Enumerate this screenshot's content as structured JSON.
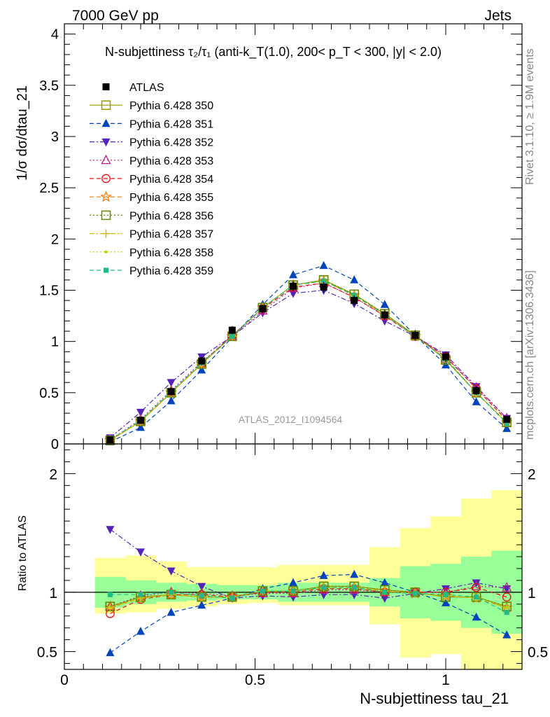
{
  "header": {
    "left": "7000 GeV pp",
    "right": "Jets"
  },
  "side_text": {
    "rivet": "Rivet 3.1.10, ≥ 1.9M events",
    "mcplots": "mcplots.cern.ch [arXiv:1306.3436]"
  },
  "chart_data": [
    {
      "type": "line",
      "panel": "main",
      "title": "N-subjettiness τ₂/τ₁ (anti-k_T(1.0), 200< p_T < 300, |y| < 2.0)",
      "ylabel": "1/σ dσ/dtau_21",
      "xlim": [
        0,
        1.2
      ],
      "ylim": [
        0,
        4.1
      ],
      "y_ticks": [
        "0",
        "0.5",
        "1",
        "1.5",
        "2",
        "2.5",
        "3",
        "3.5",
        "4"
      ],
      "watermark": "ATLAS_2012_I1094564",
      "legend_position": "top-left",
      "x": [
        0.12,
        0.2,
        0.28,
        0.36,
        0.44,
        0.52,
        0.6,
        0.68,
        0.76,
        0.84,
        0.92,
        1.0,
        1.08,
        1.16
      ],
      "atlas": {
        "name": "ATLAS",
        "values": [
          0.04,
          0.23,
          0.51,
          0.81,
          1.11,
          1.32,
          1.54,
          1.53,
          1.4,
          1.26,
          1.06,
          0.85,
          0.52,
          0.24
        ],
        "errors": [
          0.01,
          0.03,
          0.04,
          0.04,
          0.04,
          0.04,
          0.05,
          0.05,
          0.05,
          0.05,
          0.05,
          0.05,
          0.04,
          0.03
        ]
      },
      "series": [
        {
          "name": "Pythia 6.428 350",
          "color": "#999900",
          "marker": "square-open",
          "dash": "solid",
          "values": [
            0.035,
            0.22,
            0.5,
            0.78,
            1.05,
            1.33,
            1.55,
            1.6,
            1.46,
            1.27,
            1.06,
            0.82,
            0.5,
            0.21
          ]
        },
        {
          "name": "Pythia 6.428 351",
          "color": "#0044bb",
          "marker": "triangle-up",
          "dash": "dashed",
          "values": [
            0.02,
            0.16,
            0.42,
            0.72,
            1.04,
            1.36,
            1.65,
            1.74,
            1.6,
            1.36,
            1.06,
            0.77,
            0.41,
            0.15
          ]
        },
        {
          "name": "Pythia 6.428 352",
          "color": "#5522bb",
          "marker": "triangle-down",
          "dash": "dashdot",
          "values": [
            0.06,
            0.31,
            0.6,
            0.85,
            1.05,
            1.28,
            1.47,
            1.5,
            1.37,
            1.2,
            1.05,
            0.87,
            0.56,
            0.25
          ]
        },
        {
          "name": "Pythia 6.428 353",
          "color": "#bb2288",
          "marker": "triangle-open",
          "dash": "dotted",
          "values": [
            0.04,
            0.24,
            0.52,
            0.8,
            1.05,
            1.3,
            1.52,
            1.57,
            1.43,
            1.25,
            1.06,
            0.85,
            0.55,
            0.25
          ]
        },
        {
          "name": "Pythia 6.428 354",
          "color": "#dd1111",
          "marker": "circle-open",
          "dash": "dashed",
          "values": [
            0.035,
            0.22,
            0.5,
            0.79,
            1.06,
            1.32,
            1.53,
            1.57,
            1.43,
            1.25,
            1.05,
            0.85,
            0.54,
            0.23
          ]
        },
        {
          "name": "Pythia 6.428 355",
          "color": "#ee7700",
          "marker": "star-open",
          "dash": "dashed",
          "values": [
            0.035,
            0.22,
            0.5,
            0.78,
            1.05,
            1.33,
            1.55,
            1.59,
            1.45,
            1.26,
            1.05,
            0.83,
            0.5,
            0.21
          ]
        },
        {
          "name": "Pythia 6.428 356",
          "color": "#668800",
          "marker": "square-open",
          "dash": "dotted",
          "values": [
            0.035,
            0.22,
            0.5,
            0.78,
            1.05,
            1.33,
            1.55,
            1.6,
            1.46,
            1.27,
            1.06,
            0.82,
            0.5,
            0.21
          ]
        },
        {
          "name": "Pythia 6.428 357",
          "color": "#ccbb00",
          "marker": "plus",
          "dash": "dashdot",
          "values": [
            0.035,
            0.22,
            0.5,
            0.78,
            1.05,
            1.33,
            1.55,
            1.59,
            1.45,
            1.26,
            1.05,
            0.83,
            0.5,
            0.21
          ]
        },
        {
          "name": "Pythia 6.428 358",
          "color": "#bbcc00",
          "marker": "dot",
          "dash": "dotted",
          "values": [
            0.035,
            0.22,
            0.5,
            0.78,
            1.05,
            1.33,
            1.55,
            1.59,
            1.45,
            1.26,
            1.05,
            0.83,
            0.5,
            0.21
          ]
        },
        {
          "name": "Pythia 6.428 359",
          "color": "#22bb88",
          "marker": "square-filled-small",
          "dash": "dashed",
          "values": [
            0.04,
            0.23,
            0.51,
            0.79,
            1.05,
            1.33,
            1.55,
            1.59,
            1.45,
            1.26,
            1.05,
            0.83,
            0.5,
            0.2
          ]
        }
      ]
    },
    {
      "type": "line",
      "panel": "ratio",
      "ylabel": "Ratio to ATLAS",
      "xlabel": "N-subjettiness tau_21",
      "xlim": [
        0,
        1.2
      ],
      "ylim": [
        0.35,
        2.25
      ],
      "y_ticks": [
        "0.5",
        "1",
        "2"
      ],
      "x_ticks": [
        "0",
        "0.5",
        "1"
      ],
      "bin_edges": [
        0.08,
        0.16,
        0.24,
        0.32,
        0.4,
        0.48,
        0.56,
        0.64,
        0.72,
        0.8,
        0.88,
        0.96,
        1.04,
        1.12,
        1.2
      ],
      "band_inner": [
        [
          0.87,
          1.13
        ],
        [
          0.9,
          1.1
        ],
        [
          0.92,
          1.08
        ],
        [
          0.93,
          1.07
        ],
        [
          0.94,
          1.06
        ],
        [
          0.94,
          1.06
        ],
        [
          0.92,
          1.08
        ],
        [
          0.92,
          1.08
        ],
        [
          0.92,
          1.08
        ],
        [
          0.88,
          1.12
        ],
        [
          0.78,
          1.22
        ],
        [
          0.76,
          1.24
        ],
        [
          0.7,
          1.3
        ],
        [
          0.65,
          1.35
        ],
        [
          0.65,
          1.35
        ]
      ],
      "band_outer": [
        [
          0.82,
          1.29
        ],
        [
          0.83,
          1.31
        ],
        [
          0.86,
          1.26
        ],
        [
          0.88,
          1.21
        ],
        [
          0.9,
          1.21
        ],
        [
          0.91,
          1.21
        ],
        [
          0.89,
          1.23
        ],
        [
          0.89,
          1.23
        ],
        [
          0.89,
          1.23
        ],
        [
          0.73,
          1.38
        ],
        [
          0.45,
          1.54
        ],
        [
          0.48,
          1.64
        ],
        [
          0.35,
          1.79
        ],
        [
          0.35,
          1.86
        ],
        [
          0.35,
          1.86
        ]
      ],
      "series_values": [
        [
          0.88,
          0.96,
          0.98,
          0.96,
          0.96,
          1.01,
          1.01,
          1.05,
          1.05,
          1.02,
          1.0,
          0.96,
          0.96,
          0.88
        ],
        [
          0.49,
          0.67,
          0.83,
          0.89,
          0.95,
          1.03,
          1.08,
          1.14,
          1.15,
          1.08,
          1.0,
          0.91,
          0.79,
          0.64
        ],
        [
          1.53,
          1.34,
          1.18,
          1.05,
          0.95,
          0.97,
          0.96,
          0.98,
          0.98,
          0.95,
          0.99,
          1.03,
          1.08,
          1.03
        ],
        [
          0.88,
          0.97,
          1.0,
          0.99,
          0.97,
          0.99,
          0.99,
          1.02,
          1.02,
          1.0,
          1.0,
          1.0,
          1.05,
          1.04
        ],
        [
          0.82,
          0.94,
          0.98,
          0.98,
          0.96,
          1.0,
          1.0,
          1.03,
          1.03,
          1.0,
          1.0,
          1.0,
          1.04,
          0.96
        ],
        [
          0.87,
          0.95,
          0.98,
          0.96,
          0.96,
          1.01,
          1.01,
          1.04,
          1.04,
          1.01,
          0.99,
          0.97,
          0.95,
          0.87
        ],
        [
          0.88,
          0.96,
          0.98,
          0.96,
          0.96,
          1.01,
          1.01,
          1.05,
          1.05,
          1.02,
          1.0,
          0.96,
          0.96,
          0.88
        ],
        [
          0.87,
          0.95,
          0.98,
          0.96,
          0.96,
          1.01,
          1.01,
          1.04,
          1.04,
          1.01,
          0.99,
          0.97,
          0.95,
          0.87
        ],
        [
          0.87,
          0.95,
          0.98,
          0.96,
          0.96,
          1.01,
          1.01,
          1.04,
          1.04,
          1.01,
          0.99,
          0.97,
          0.95,
          0.87
        ],
        [
          0.98,
          0.98,
          1.0,
          0.97,
          0.95,
          1.01,
          1.01,
          1.04,
          1.04,
          1.0,
          0.99,
          0.98,
          0.96,
          0.83
        ]
      ]
    }
  ]
}
